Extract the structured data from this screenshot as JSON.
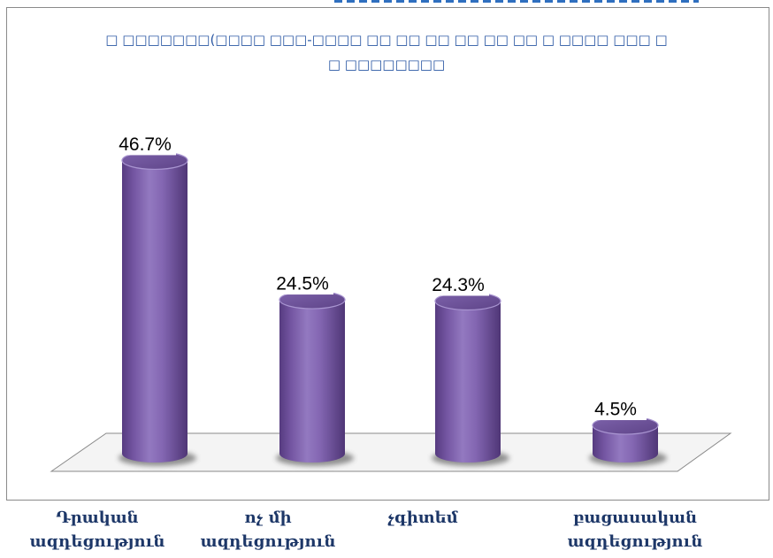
{
  "chart_data": {
    "type": "bar",
    "bar_shape": "cylinder",
    "three_d": true,
    "title": "□ □□□□□□□(□□□□ □□□-□□□□ □□ □□ □□ □□ □□ □□ □ □□□□ □□□ □\n□ □□□□□□□□",
    "categories": [
      "Դրական ազդեցություն",
      "ոչ մի ազդեցություն",
      "չգիտեմ",
      "բացասական ազդեցություն"
    ],
    "values": [
      46.7,
      24.5,
      24.3,
      4.5
    ],
    "data_labels": [
      "46.7%",
      "24.5%",
      "24.3%",
      "4.5%"
    ],
    "unit": "%",
    "grid": false,
    "legend": "none",
    "colors": {
      "bar": "#7b5ea8",
      "bar_top": "#6b5098",
      "title": "#2a57a3",
      "category_labels": "#1d3768",
      "frame": "#8a8a8a",
      "floor": "#f4f4f4"
    }
  }
}
